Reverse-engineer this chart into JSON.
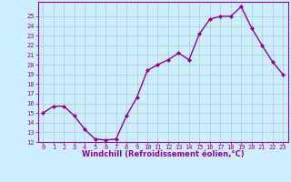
{
  "x": [
    0,
    1,
    2,
    3,
    4,
    5,
    6,
    7,
    8,
    9,
    10,
    11,
    12,
    13,
    14,
    15,
    16,
    17,
    18,
    19,
    20,
    21,
    22,
    23
  ],
  "y": [
    15.0,
    15.7,
    15.7,
    14.7,
    13.3,
    12.3,
    12.2,
    12.3,
    14.7,
    16.6,
    19.4,
    20.0,
    20.5,
    21.2,
    20.5,
    23.2,
    24.7,
    25.0,
    25.0,
    26.0,
    23.8,
    22.0,
    20.3,
    19.0
  ],
  "ylim": [
    12,
    26
  ],
  "xlim": [
    -0.5,
    23.5
  ],
  "yticks": [
    12,
    13,
    14,
    15,
    16,
    17,
    18,
    19,
    20,
    21,
    22,
    23,
    24,
    25
  ],
  "xticks": [
    0,
    1,
    2,
    3,
    4,
    5,
    6,
    7,
    8,
    9,
    10,
    11,
    12,
    13,
    14,
    15,
    16,
    17,
    18,
    19,
    20,
    21,
    22,
    23
  ],
  "xlabel": "Windchill (Refroidissement éolien,°C)",
  "line_color": "#990099",
  "marker": "D",
  "marker_size": 2.0,
  "bg_color": "#cceeff",
  "grid_color": "#aacccc",
  "tick_color": "#990099",
  "label_color": "#990099",
  "tick_fontsize": 5.0,
  "xlabel_fontsize": 6.0,
  "linewidth": 1.0
}
